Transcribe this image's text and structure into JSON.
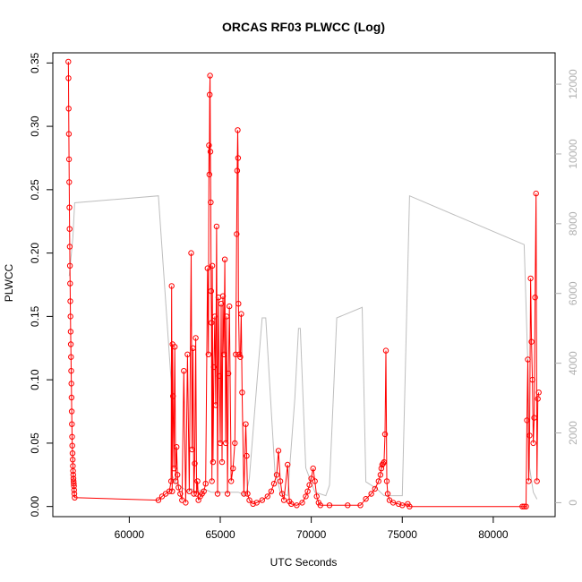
{
  "chart_data": {
    "type": "line",
    "title": "ORCAS RF03 PLWCC (Log)",
    "xlabel": "UTC Seconds",
    "ylabel": "PLWCC",
    "xlim": [
      55800,
      83400
    ],
    "ylim": [
      -0.008,
      0.358
    ],
    "y2lim": [
      -400,
      12900
    ],
    "x_ticks": [
      60000,
      65000,
      70000,
      75000,
      80000
    ],
    "x_tick_labels": [
      "60000",
      "65000",
      "70000",
      "75000",
      "80000"
    ],
    "y_ticks": [
      0.0,
      0.05,
      0.1,
      0.15,
      0.2,
      0.25,
      0.3,
      0.35
    ],
    "y_tick_labels": [
      "0.00",
      "0.05",
      "0.10",
      "0.15",
      "0.20",
      "0.25",
      "0.30",
      "0.35"
    ],
    "y2_ticks": [
      0,
      2000,
      4000,
      6000,
      8000,
      10000,
      12000
    ],
    "y2_tick_labels": [
      "0",
      "2000",
      "4000",
      "6000",
      "8000",
      "10000",
      "12000"
    ],
    "colors": {
      "plwcc": "#ff0000",
      "altitude": "#bebebe",
      "axis": "#000000",
      "axis_right": "#b0b0b0"
    },
    "series": [
      {
        "axis": "right",
        "style": "line",
        "x": [
          56700,
          56900,
          57000,
          61600,
          62300,
          62350,
          62500,
          62700,
          63000,
          63200,
          63400,
          63700,
          64100,
          64500,
          65000,
          66000,
          66400,
          66600,
          67100,
          67300,
          67500,
          68000,
          68300,
          68700,
          69100,
          69300,
          69400,
          69700,
          70200,
          70800,
          71000,
          71400,
          72800,
          73000,
          73600,
          74000,
          75000,
          75400,
          81700,
          81900,
          82000,
          82200,
          82400
        ],
        "y": [
          6500,
          7600,
          8600,
          8800,
          3500,
          800,
          600,
          500,
          400,
          300,
          400,
          300,
          400,
          300,
          300,
          300,
          200,
          700,
          4000,
          5300,
          5300,
          900,
          300,
          200,
          3000,
          5000,
          5000,
          1000,
          300,
          200,
          500,
          5300,
          5600,
          600,
          400,
          200,
          200,
          8800,
          7400,
          4000,
          1000,
          300,
          100
        ]
      },
      {
        "axis": "left",
        "style": "line+points",
        "x": [
          56650,
          56660,
          56670,
          56680,
          56690,
          56700,
          56710,
          56720,
          56730,
          56740,
          56750,
          56760,
          56770,
          56780,
          56790,
          56800,
          56810,
          56820,
          56830,
          56840,
          56850,
          56860,
          56870,
          56880,
          56890,
          56900,
          56910,
          56920,
          56930,
          56940,
          56950,
          56960,
          56970,
          56980,
          57000,
          61600,
          61800,
          62000,
          62200,
          62300,
          62330,
          62360,
          62380,
          62400,
          62450,
          62500,
          62550,
          62600,
          62650,
          62700,
          62800,
          62900,
          63000,
          63100,
          63200,
          63300,
          63400,
          63450,
          63500,
          63550,
          63600,
          63650,
          63700,
          63750,
          63800,
          63900,
          64000,
          64100,
          64200,
          64300,
          64350,
          64380,
          64400,
          64420,
          64440,
          64460,
          64480,
          64500,
          64520,
          64540,
          64560,
          64600,
          64650,
          64700,
          64750,
          64800,
          64850,
          64900,
          64950,
          65000,
          65050,
          65100,
          65150,
          65200,
          65250,
          65300,
          65350,
          65400,
          65450,
          65500,
          65600,
          65700,
          65800,
          65850,
          65900,
          65930,
          65960,
          65980,
          66000,
          66050,
          66100,
          66150,
          66200,
          66300,
          66400,
          66450,
          66500,
          66600,
          66800,
          67000,
          67300,
          67600,
          67800,
          67950,
          68100,
          68200,
          68300,
          68400,
          68500,
          68700,
          68800,
          68900,
          69200,
          69500,
          69700,
          69800,
          69900,
          70000,
          70100,
          70200,
          70300,
          70400,
          70500,
          71000,
          72000,
          72700,
          73000,
          73300,
          73500,
          73700,
          73800,
          73850,
          73900,
          73950,
          74000,
          74050,
          74100,
          74150,
          74200,
          74300,
          74500,
          74800,
          75000,
          75300,
          75400,
          81600,
          81700,
          81800,
          81850,
          81900,
          81950,
          82000,
          82050,
          82100,
          82150,
          82200,
          82250,
          82300,
          82350,
          82400,
          82450,
          82500
        ],
        "y": [
          0.351,
          0.338,
          0.314,
          0.294,
          0.274,
          0.256,
          0.236,
          0.219,
          0.205,
          0.19,
          0.176,
          0.162,
          0.15,
          0.138,
          0.128,
          0.118,
          0.107,
          0.097,
          0.086,
          0.075,
          0.065,
          0.055,
          0.048,
          0.042,
          0.037,
          0.032,
          0.028,
          0.025,
          0.022,
          0.02,
          0.018,
          0.016,
          0.013,
          0.01,
          0.007,
          0.005,
          0.008,
          0.01,
          0.012,
          0.02,
          0.174,
          0.012,
          0.128,
          0.087,
          0.03,
          0.126,
          0.02,
          0.047,
          0.025,
          0.015,
          0.01,
          0.005,
          0.107,
          0.003,
          0.12,
          0.012,
          0.2,
          0.045,
          0.125,
          0.01,
          0.034,
          0.133,
          0.01,
          0.02,
          0.005,
          0.008,
          0.01,
          0.012,
          0.018,
          0.188,
          0.12,
          0.285,
          0.262,
          0.325,
          0.34,
          0.28,
          0.24,
          0.17,
          0.145,
          0.02,
          0.19,
          0.035,
          0.11,
          0.15,
          0.08,
          0.221,
          0.01,
          0.165,
          0.103,
          0.05,
          0.16,
          0.035,
          0.166,
          0.12,
          0.195,
          0.05,
          0.15,
          0.01,
          0.105,
          0.158,
          0.02,
          0.03,
          0.05,
          0.12,
          0.215,
          0.265,
          0.297,
          0.275,
          0.16,
          0.12,
          0.118,
          0.152,
          0.09,
          0.01,
          0.065,
          0.04,
          0.01,
          0.005,
          0.002,
          0.003,
          0.005,
          0.008,
          0.012,
          0.018,
          0.025,
          0.044,
          0.02,
          0.01,
          0.005,
          0.033,
          0.004,
          0.002,
          0.001,
          0.003,
          0.008,
          0.012,
          0.017,
          0.022,
          0.03,
          0.02,
          0.008,
          0.003,
          0.001,
          0.001,
          0.001,
          0.001,
          0.006,
          0.01,
          0.014,
          0.02,
          0.025,
          0.03,
          0.033,
          0.034,
          0.035,
          0.057,
          0.123,
          0.02,
          0.01,
          0.005,
          0.003,
          0.002,
          0.001,
          0.002,
          0.0,
          0.0,
          0.0,
          0.0,
          0.068,
          0.116,
          0.02,
          0.056,
          0.18,
          0.13,
          0.1,
          0.05,
          0.07,
          0.165,
          0.247,
          0.02,
          0.085,
          0.09
        ]
      }
    ]
  }
}
